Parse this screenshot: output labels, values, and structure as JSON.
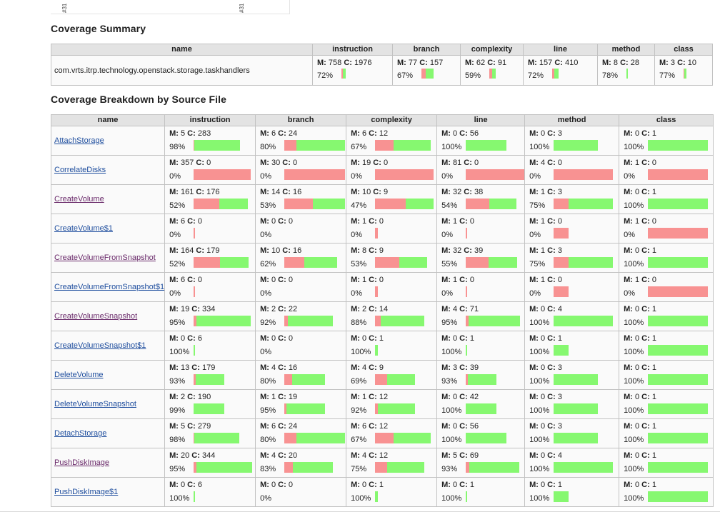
{
  "top_ticks": [
    "#31",
    "#31"
  ],
  "summary_title": "Coverage Summary",
  "breakdown_title": "Coverage Breakdown by Source File",
  "summary_headers": [
    "name",
    "instruction",
    "branch",
    "complexity",
    "line",
    "method",
    "class"
  ],
  "breakdown_headers": [
    "name",
    "instruction",
    "branch",
    "complexity",
    "line",
    "method",
    "class"
  ],
  "colors": {
    "missed": "#f89292",
    "covered": "#86f870",
    "header_bg": "#e3e3e3",
    "link": "#1f4e9e",
    "visited_link": "#6a2a6a"
  },
  "summary": {
    "name": "com.vrts.itrp.technology.openstack.storage.taskhandlers",
    "instruction": {
      "m": "758",
      "c": "1976",
      "pct": "72%",
      "cov": 0.72
    },
    "branch": {
      "m": "77",
      "c": "157",
      "pct": "67%",
      "cov": 0.67
    },
    "complexity": {
      "m": "62",
      "c": "91",
      "pct": "59%",
      "cov": 0.59
    },
    "line": {
      "m": "157",
      "c": "410",
      "pct": "72%",
      "cov": 0.72
    },
    "method": {
      "m": "8",
      "c": "28",
      "pct": "78%",
      "cov": 0.78
    },
    "class": {
      "m": "3",
      "c": "10",
      "pct": "77%",
      "cov": 0.77
    }
  },
  "rows": [
    {
      "name": "AttachStorage",
      "visited": false,
      "instruction": {
        "m": "5",
        "c": "283",
        "pct": "98%",
        "cov": 0.98,
        "total": 288
      },
      "branch": {
        "m": "6",
        "c": "24",
        "pct": "80%",
        "cov": 0.8,
        "total": 30
      },
      "complexity": {
        "m": "6",
        "c": "12",
        "pct": "67%",
        "cov": 0.67,
        "total": 18
      },
      "line": {
        "m": "0",
        "c": "56",
        "pct": "100%",
        "cov": 1.0,
        "total": 56
      },
      "method": {
        "m": "0",
        "c": "3",
        "pct": "100%",
        "cov": 1.0,
        "total": 3
      },
      "class": {
        "m": "0",
        "c": "1",
        "pct": "100%",
        "cov": 1.0,
        "total": 1
      }
    },
    {
      "name": "CorrelateDisks",
      "visited": false,
      "instruction": {
        "m": "357",
        "c": "0",
        "pct": "0%",
        "cov": 0.0,
        "total": 357
      },
      "branch": {
        "m": "30",
        "c": "0",
        "pct": "0%",
        "cov": 0.0,
        "total": 30
      },
      "complexity": {
        "m": "19",
        "c": "0",
        "pct": "0%",
        "cov": 0.0,
        "total": 19
      },
      "line": {
        "m": "81",
        "c": "0",
        "pct": "0%",
        "cov": 0.0,
        "total": 81
      },
      "method": {
        "m": "4",
        "c": "0",
        "pct": "0%",
        "cov": 0.0,
        "total": 4
      },
      "class": {
        "m": "1",
        "c": "0",
        "pct": "0%",
        "cov": 0.0,
        "total": 1
      }
    },
    {
      "name": "CreateVolume",
      "visited": true,
      "instruction": {
        "m": "161",
        "c": "176",
        "pct": "52%",
        "cov": 0.52,
        "total": 337
      },
      "branch": {
        "m": "14",
        "c": "16",
        "pct": "53%",
        "cov": 0.53,
        "total": 30
      },
      "complexity": {
        "m": "10",
        "c": "9",
        "pct": "47%",
        "cov": 0.47,
        "total": 19
      },
      "line": {
        "m": "32",
        "c": "38",
        "pct": "54%",
        "cov": 0.54,
        "total": 70
      },
      "method": {
        "m": "1",
        "c": "3",
        "pct": "75%",
        "cov": 0.75,
        "total": 4
      },
      "class": {
        "m": "0",
        "c": "1",
        "pct": "100%",
        "cov": 1.0,
        "total": 1
      }
    },
    {
      "name": "CreateVolume$1",
      "visited": false,
      "instruction": {
        "m": "6",
        "c": "0",
        "pct": "0%",
        "cov": 0.0,
        "total": 6
      },
      "branch": {
        "m": "0",
        "c": "0",
        "pct": "0%",
        "cov": 0.0,
        "total": 0
      },
      "complexity": {
        "m": "1",
        "c": "0",
        "pct": "0%",
        "cov": 0.0,
        "total": 1
      },
      "line": {
        "m": "1",
        "c": "0",
        "pct": "0%",
        "cov": 0.0,
        "total": 1
      },
      "method": {
        "m": "1",
        "c": "0",
        "pct": "0%",
        "cov": 0.0,
        "total": 1
      },
      "class": {
        "m": "1",
        "c": "0",
        "pct": "0%",
        "cov": 0.0,
        "total": 1
      }
    },
    {
      "name": "CreateVolumeFromSnapshot",
      "visited": true,
      "instruction": {
        "m": "164",
        "c": "179",
        "pct": "52%",
        "cov": 0.52,
        "total": 343
      },
      "branch": {
        "m": "10",
        "c": "16",
        "pct": "62%",
        "cov": 0.62,
        "total": 26
      },
      "complexity": {
        "m": "8",
        "c": "9",
        "pct": "53%",
        "cov": 0.53,
        "total": 17
      },
      "line": {
        "m": "32",
        "c": "39",
        "pct": "55%",
        "cov": 0.55,
        "total": 71
      },
      "method": {
        "m": "1",
        "c": "3",
        "pct": "75%",
        "cov": 0.75,
        "total": 4
      },
      "class": {
        "m": "0",
        "c": "1",
        "pct": "100%",
        "cov": 1.0,
        "total": 1
      }
    },
    {
      "name": "CreateVolumeFromSnapshot$1",
      "visited": false,
      "instruction": {
        "m": "6",
        "c": "0",
        "pct": "0%",
        "cov": 0.0,
        "total": 6
      },
      "branch": {
        "m": "0",
        "c": "0",
        "pct": "0%",
        "cov": 0.0,
        "total": 0
      },
      "complexity": {
        "m": "1",
        "c": "0",
        "pct": "0%",
        "cov": 0.0,
        "total": 1
      },
      "line": {
        "m": "1",
        "c": "0",
        "pct": "0%",
        "cov": 0.0,
        "total": 1
      },
      "method": {
        "m": "1",
        "c": "0",
        "pct": "0%",
        "cov": 0.0,
        "total": 1
      },
      "class": {
        "m": "1",
        "c": "0",
        "pct": "0%",
        "cov": 0.0,
        "total": 1
      }
    },
    {
      "name": "CreateVolumeSnapshot",
      "visited": true,
      "instruction": {
        "m": "19",
        "c": "334",
        "pct": "95%",
        "cov": 0.95,
        "total": 353
      },
      "branch": {
        "m": "2",
        "c": "22",
        "pct": "92%",
        "cov": 0.92,
        "total": 24
      },
      "complexity": {
        "m": "2",
        "c": "14",
        "pct": "88%",
        "cov": 0.88,
        "total": 16
      },
      "line": {
        "m": "4",
        "c": "71",
        "pct": "95%",
        "cov": 0.95,
        "total": 75
      },
      "method": {
        "m": "0",
        "c": "4",
        "pct": "100%",
        "cov": 1.0,
        "total": 4
      },
      "class": {
        "m": "0",
        "c": "1",
        "pct": "100%",
        "cov": 1.0,
        "total": 1
      }
    },
    {
      "name": "CreateVolumeSnapshot$1",
      "visited": false,
      "instruction": {
        "m": "0",
        "c": "6",
        "pct": "100%",
        "cov": 1.0,
        "total": 6
      },
      "branch": {
        "m": "0",
        "c": "0",
        "pct": "0%",
        "cov": 0.0,
        "total": 0
      },
      "complexity": {
        "m": "0",
        "c": "1",
        "pct": "100%",
        "cov": 1.0,
        "total": 1
      },
      "line": {
        "m": "0",
        "c": "1",
        "pct": "100%",
        "cov": 1.0,
        "total": 1
      },
      "method": {
        "m": "0",
        "c": "1",
        "pct": "100%",
        "cov": 1.0,
        "total": 1
      },
      "class": {
        "m": "0",
        "c": "1",
        "pct": "100%",
        "cov": 1.0,
        "total": 1
      }
    },
    {
      "name": "DeleteVolume",
      "visited": false,
      "instruction": {
        "m": "13",
        "c": "179",
        "pct": "93%",
        "cov": 0.93,
        "total": 192
      },
      "branch": {
        "m": "4",
        "c": "16",
        "pct": "80%",
        "cov": 0.8,
        "total": 20
      },
      "complexity": {
        "m": "4",
        "c": "9",
        "pct": "69%",
        "cov": 0.69,
        "total": 13
      },
      "line": {
        "m": "3",
        "c": "39",
        "pct": "93%",
        "cov": 0.93,
        "total": 42
      },
      "method": {
        "m": "0",
        "c": "3",
        "pct": "100%",
        "cov": 1.0,
        "total": 3
      },
      "class": {
        "m": "0",
        "c": "1",
        "pct": "100%",
        "cov": 1.0,
        "total": 1
      }
    },
    {
      "name": "DeleteVolumeSnapshot",
      "visited": false,
      "instruction": {
        "m": "2",
        "c": "190",
        "pct": "99%",
        "cov": 0.99,
        "total": 192
      },
      "branch": {
        "m": "1",
        "c": "19",
        "pct": "95%",
        "cov": 0.95,
        "total": 20
      },
      "complexity": {
        "m": "1",
        "c": "12",
        "pct": "92%",
        "cov": 0.92,
        "total": 13
      },
      "line": {
        "m": "0",
        "c": "42",
        "pct": "100%",
        "cov": 1.0,
        "total": 42
      },
      "method": {
        "m": "0",
        "c": "3",
        "pct": "100%",
        "cov": 1.0,
        "total": 3
      },
      "class": {
        "m": "0",
        "c": "1",
        "pct": "100%",
        "cov": 1.0,
        "total": 1
      }
    },
    {
      "name": "DetachStorage",
      "visited": false,
      "instruction": {
        "m": "5",
        "c": "279",
        "pct": "98%",
        "cov": 0.98,
        "total": 284
      },
      "branch": {
        "m": "6",
        "c": "24",
        "pct": "80%",
        "cov": 0.8,
        "total": 30
      },
      "complexity": {
        "m": "6",
        "c": "12",
        "pct": "67%",
        "cov": 0.67,
        "total": 18
      },
      "line": {
        "m": "0",
        "c": "56",
        "pct": "100%",
        "cov": 1.0,
        "total": 56
      },
      "method": {
        "m": "0",
        "c": "3",
        "pct": "100%",
        "cov": 1.0,
        "total": 3
      },
      "class": {
        "m": "0",
        "c": "1",
        "pct": "100%",
        "cov": 1.0,
        "total": 1
      }
    },
    {
      "name": "PushDiskImage",
      "visited": true,
      "instruction": {
        "m": "20",
        "c": "344",
        "pct": "95%",
        "cov": 0.95,
        "total": 364
      },
      "branch": {
        "m": "4",
        "c": "20",
        "pct": "83%",
        "cov": 0.83,
        "total": 24
      },
      "complexity": {
        "m": "4",
        "c": "12",
        "pct": "75%",
        "cov": 0.75,
        "total": 16
      },
      "line": {
        "m": "5",
        "c": "69",
        "pct": "93%",
        "cov": 0.93,
        "total": 74
      },
      "method": {
        "m": "0",
        "c": "4",
        "pct": "100%",
        "cov": 1.0,
        "total": 4
      },
      "class": {
        "m": "0",
        "c": "1",
        "pct": "100%",
        "cov": 1.0,
        "total": 1
      }
    },
    {
      "name": "PushDiskImage$1",
      "visited": false,
      "instruction": {
        "m": "0",
        "c": "6",
        "pct": "100%",
        "cov": 1.0,
        "total": 6
      },
      "branch": {
        "m": "0",
        "c": "0",
        "pct": "0%",
        "cov": 0.0,
        "total": 0
      },
      "complexity": {
        "m": "0",
        "c": "1",
        "pct": "100%",
        "cov": 1.0,
        "total": 1
      },
      "line": {
        "m": "0",
        "c": "1",
        "pct": "100%",
        "cov": 1.0,
        "total": 1
      },
      "method": {
        "m": "0",
        "c": "1",
        "pct": "100%",
        "cov": 1.0,
        "total": 1
      },
      "class": {
        "m": "0",
        "c": "1",
        "pct": "100%",
        "cov": 1.0,
        "total": 1
      }
    }
  ]
}
